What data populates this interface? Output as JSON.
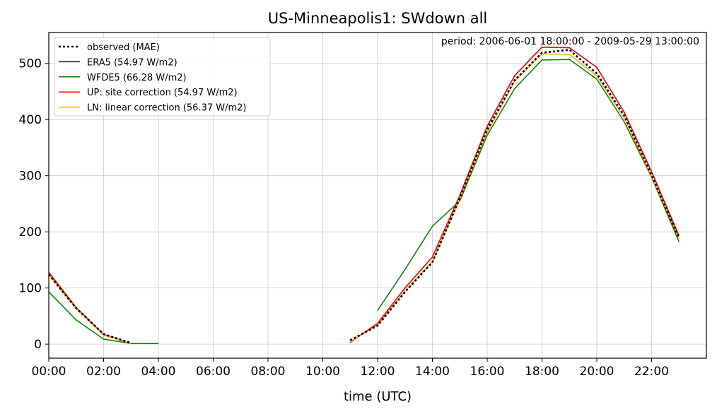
{
  "chart_data": {
    "type": "line",
    "title": "US-Minneapolis1: SWdown all",
    "annotation": "period: 2006-06-01 18:00:00 - 2009-05-29 13:00:00",
    "xlabel": "time (UTC)",
    "ylabel": "",
    "xlim": [
      0,
      24
    ],
    "ylim": [
      -25,
      555
    ],
    "xticks": [
      {
        "value": 0,
        "label": "00:00"
      },
      {
        "value": 2,
        "label": "02:00"
      },
      {
        "value": 4,
        "label": "04:00"
      },
      {
        "value": 6,
        "label": "06:00"
      },
      {
        "value": 8,
        "label": "08:00"
      },
      {
        "value": 10,
        "label": "10:00"
      },
      {
        "value": 12,
        "label": "12:00"
      },
      {
        "value": 14,
        "label": "14:00"
      },
      {
        "value": 16,
        "label": "16:00"
      },
      {
        "value": 18,
        "label": "18:00"
      },
      {
        "value": 20,
        "label": "20:00"
      },
      {
        "value": 22,
        "label": "22:00"
      }
    ],
    "yticks": [
      0,
      100,
      200,
      300,
      400,
      500
    ],
    "grid": true,
    "legend_position": "top-left",
    "series": [
      {
        "name": "ERA5 (54.97 W/m2)",
        "color": "#0000cc",
        "style": "solid",
        "segments": [
          [
            [
              0,
              128
            ],
            [
              1,
              65
            ],
            [
              2,
              17
            ],
            [
              3,
              1
            ]
          ],
          [
            [
              11,
              3
            ],
            [
              12,
              37
            ],
            [
              13,
              100
            ],
            [
              14,
              155
            ],
            [
              15,
              265
            ],
            [
              16,
              388
            ],
            [
              17,
              478
            ],
            [
              18,
              529
            ],
            [
              19,
              528
            ],
            [
              20,
              493
            ],
            [
              21,
              413
            ],
            [
              22,
              307
            ],
            [
              23,
              193
            ]
          ]
        ]
      },
      {
        "name": "WFDE5 (66.28 W/m2)",
        "color": "#008000",
        "style": "solid",
        "segments": [
          [
            [
              0,
              93
            ],
            [
              1,
              43
            ],
            [
              2,
              9
            ],
            [
              3,
              1
            ],
            [
              4,
              1
            ]
          ],
          [
            [
              12,
              60
            ],
            [
              13,
              133
            ],
            [
              14,
              210
            ],
            [
              15,
              255
            ],
            [
              16,
              372
            ],
            [
              17,
              455
            ],
            [
              18,
              506
            ],
            [
              19,
              507
            ],
            [
              20,
              472
            ],
            [
              21,
              396
            ],
            [
              22,
              297
            ],
            [
              23,
              182
            ]
          ]
        ]
      },
      {
        "name": "UP: site correction (54.97 W/m2)",
        "color": "#ff0000",
        "style": "solid",
        "segments": [
          [
            [
              0,
              128
            ],
            [
              1,
              65
            ],
            [
              2,
              17
            ],
            [
              3,
              1
            ]
          ],
          [
            [
              11,
              3
            ],
            [
              12,
              37
            ],
            [
              13,
              100
            ],
            [
              14,
              155
            ],
            [
              15,
              265
            ],
            [
              16,
              388
            ],
            [
              17,
              478
            ],
            [
              18,
              529
            ],
            [
              19,
              528
            ],
            [
              20,
              493
            ],
            [
              21,
              413
            ],
            [
              22,
              307
            ],
            [
              23,
              193
            ]
          ]
        ]
      },
      {
        "name": "LN: linear correction (56.37 W/m2)",
        "color": "#ffa500",
        "style": "solid",
        "segments": [
          [
            [
              0,
              124
            ],
            [
              1,
              63
            ],
            [
              2,
              16
            ],
            [
              3,
              1
            ]
          ],
          [
            [
              11,
              4
            ],
            [
              12,
              34
            ],
            [
              13,
              95
            ],
            [
              14,
              147
            ],
            [
              15,
              258
            ],
            [
              16,
              377
            ],
            [
              17,
              468
            ],
            [
              18,
              517
            ],
            [
              19,
              516
            ],
            [
              20,
              478
            ],
            [
              21,
              403
            ],
            [
              22,
              298
            ],
            [
              23,
              188
            ]
          ]
        ]
      },
      {
        "name": "observed (MAE)",
        "color": "#000000",
        "style": "dotted",
        "segments": [
          [
            [
              0,
              124
            ],
            [
              1,
              64
            ],
            [
              2,
              18
            ],
            [
              3,
              2
            ]
          ],
          [
            [
              11,
              7
            ],
            [
              12,
              33
            ],
            [
              13,
              93
            ],
            [
              14,
              146
            ],
            [
              15,
              260
            ],
            [
              16,
              382
            ],
            [
              17,
              470
            ],
            [
              18,
              519
            ],
            [
              19,
              524
            ],
            [
              20,
              482
            ],
            [
              21,
              407
            ],
            [
              22,
              301
            ],
            [
              23,
              189
            ]
          ]
        ]
      }
    ],
    "legend_order": [
      4,
      0,
      1,
      2,
      3
    ]
  }
}
